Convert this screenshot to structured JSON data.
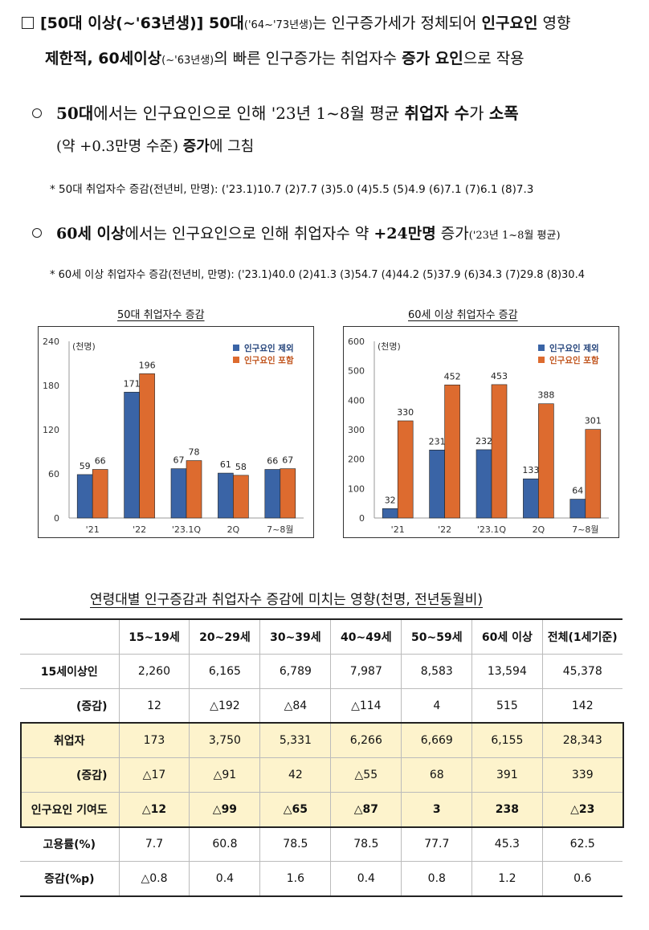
{
  "heading": {
    "line1_part1": "[50대 이상(~'63년생)] 50대",
    "line1_part2": "('64~'73년생)",
    "line1_part3": "는 인구증가세가 정체되어 ",
    "line1_bold": "인구요인",
    "line1_part4": " 영향",
    "line2_bold1": "제한적, 60세이상",
    "line2_part1": "(~'63년생)",
    "line2_part2": "의 빠른 인구증가는 취업자수 ",
    "line2_bold2": "증가 요인",
    "line2_part3": "으로 작용"
  },
  "bullet1": {
    "bold": "50대",
    "text1": "에서는 인구요인으로 인해 '23년 1~8월 평균 ",
    "bold2": "취업자 수",
    "text2": "가 ",
    "bold3": "소폭",
    "line2_text1": "(약 +0.3만명 수준) ",
    "line2_bold": "증가",
    "line2_text2": "에 그침",
    "note": "* 50대 취업자수 증감(전년비, 만명): ('23.1)10.7 (2)7.7 (3)5.0 (4)5.5 (5)4.9 (6)7.1 (7)6.1 (8)7.3"
  },
  "bullet2": {
    "bold": "60세 이상",
    "text1": "에서는 인구요인으로 인해 취업자수 약 ",
    "bold2": "+24만명",
    "text2": " 증가",
    "text3": "('23년 1~8월 평균)",
    "note": "* 60세 이상 취업자수 증감(전년비, 만명): ('23.1)40.0 (2)41.3 (3)54.7 (4)44.2 (5)37.9 (6)34.3 (7)29.8 (8)30.4"
  },
  "colors": {
    "blue": "#3a64a6",
    "orange": "#dd6b2f"
  },
  "chart_data": [
    {
      "type": "bar",
      "title": "50대 취업자수 증감",
      "unit_label": "(천명)",
      "categories": [
        "'21",
        "'22",
        "'23.1Q",
        "2Q",
        "7~8월"
      ],
      "series": [
        {
          "name": "인구요인 제외",
          "values": [
            59,
            171,
            67,
            61,
            66
          ]
        },
        {
          "name": "인구요인 포함",
          "values": [
            66,
            196,
            78,
            58,
            67
          ]
        }
      ],
      "ylim": [
        0,
        240
      ],
      "yticks": [
        0,
        60,
        120,
        180,
        240
      ],
      "legend": "top-right"
    },
    {
      "type": "bar",
      "title": "60세 이상 취업자수 증감",
      "unit_label": "(천명)",
      "categories": [
        "'21",
        "'22",
        "'23.1Q",
        "2Q",
        "7~8월"
      ],
      "series": [
        {
          "name": "인구요인 제외",
          "values": [
            32,
            231,
            232,
            133,
            64
          ]
        },
        {
          "name": "인구요인 포함",
          "values": [
            330,
            452,
            453,
            388,
            301
          ]
        }
      ],
      "ylim": [
        0,
        600
      ],
      "yticks": [
        0,
        100,
        200,
        300,
        400,
        500,
        600
      ],
      "ytick_labels": [
        "0",
        "100",
        "200",
        "300",
        "400",
        "500",
        "600"
      ],
      "legend": "top-right"
    }
  ],
  "table": {
    "caption": "연령대별 인구증감과 취업자수 증감에 미치는 영향(천명, 전년동월비)",
    "headers": [
      "",
      "15~19세",
      "20~29세",
      "30~39세",
      "40~49세",
      "50~59세",
      "60세 이상",
      "전체(1세기준)"
    ],
    "rows": [
      {
        "label": "15세이상인",
        "values": [
          "2,260",
          "6,165",
          "6,789",
          "7,987",
          "8,583",
          "13,594",
          "45,378"
        ]
      },
      {
        "label": "(증감)",
        "values": [
          "12",
          "△192",
          "△84",
          "△114",
          "4",
          "515",
          "142"
        ]
      },
      {
        "label": "취업자",
        "values": [
          "173",
          "3,750",
          "5,331",
          "6,266",
          "6,669",
          "6,155",
          "28,343"
        ]
      },
      {
        "label": "(증감)",
        "values": [
          "△17",
          "△91",
          "42",
          "△55",
          "68",
          "391",
          "339"
        ]
      },
      {
        "label": "인구요인 기여도",
        "values": [
          "△12",
          "△99",
          "△65",
          "△87",
          "3",
          "238",
          "△23"
        ]
      },
      {
        "label": "고용률(%)",
        "values": [
          "7.7",
          "60.8",
          "78.5",
          "78.5",
          "77.7",
          "45.3",
          "62.5"
        ]
      },
      {
        "label": "증감(%p)",
        "values": [
          "△0.8",
          "0.4",
          "1.6",
          "0.4",
          "0.8",
          "1.2",
          "0.6"
        ]
      }
    ]
  }
}
